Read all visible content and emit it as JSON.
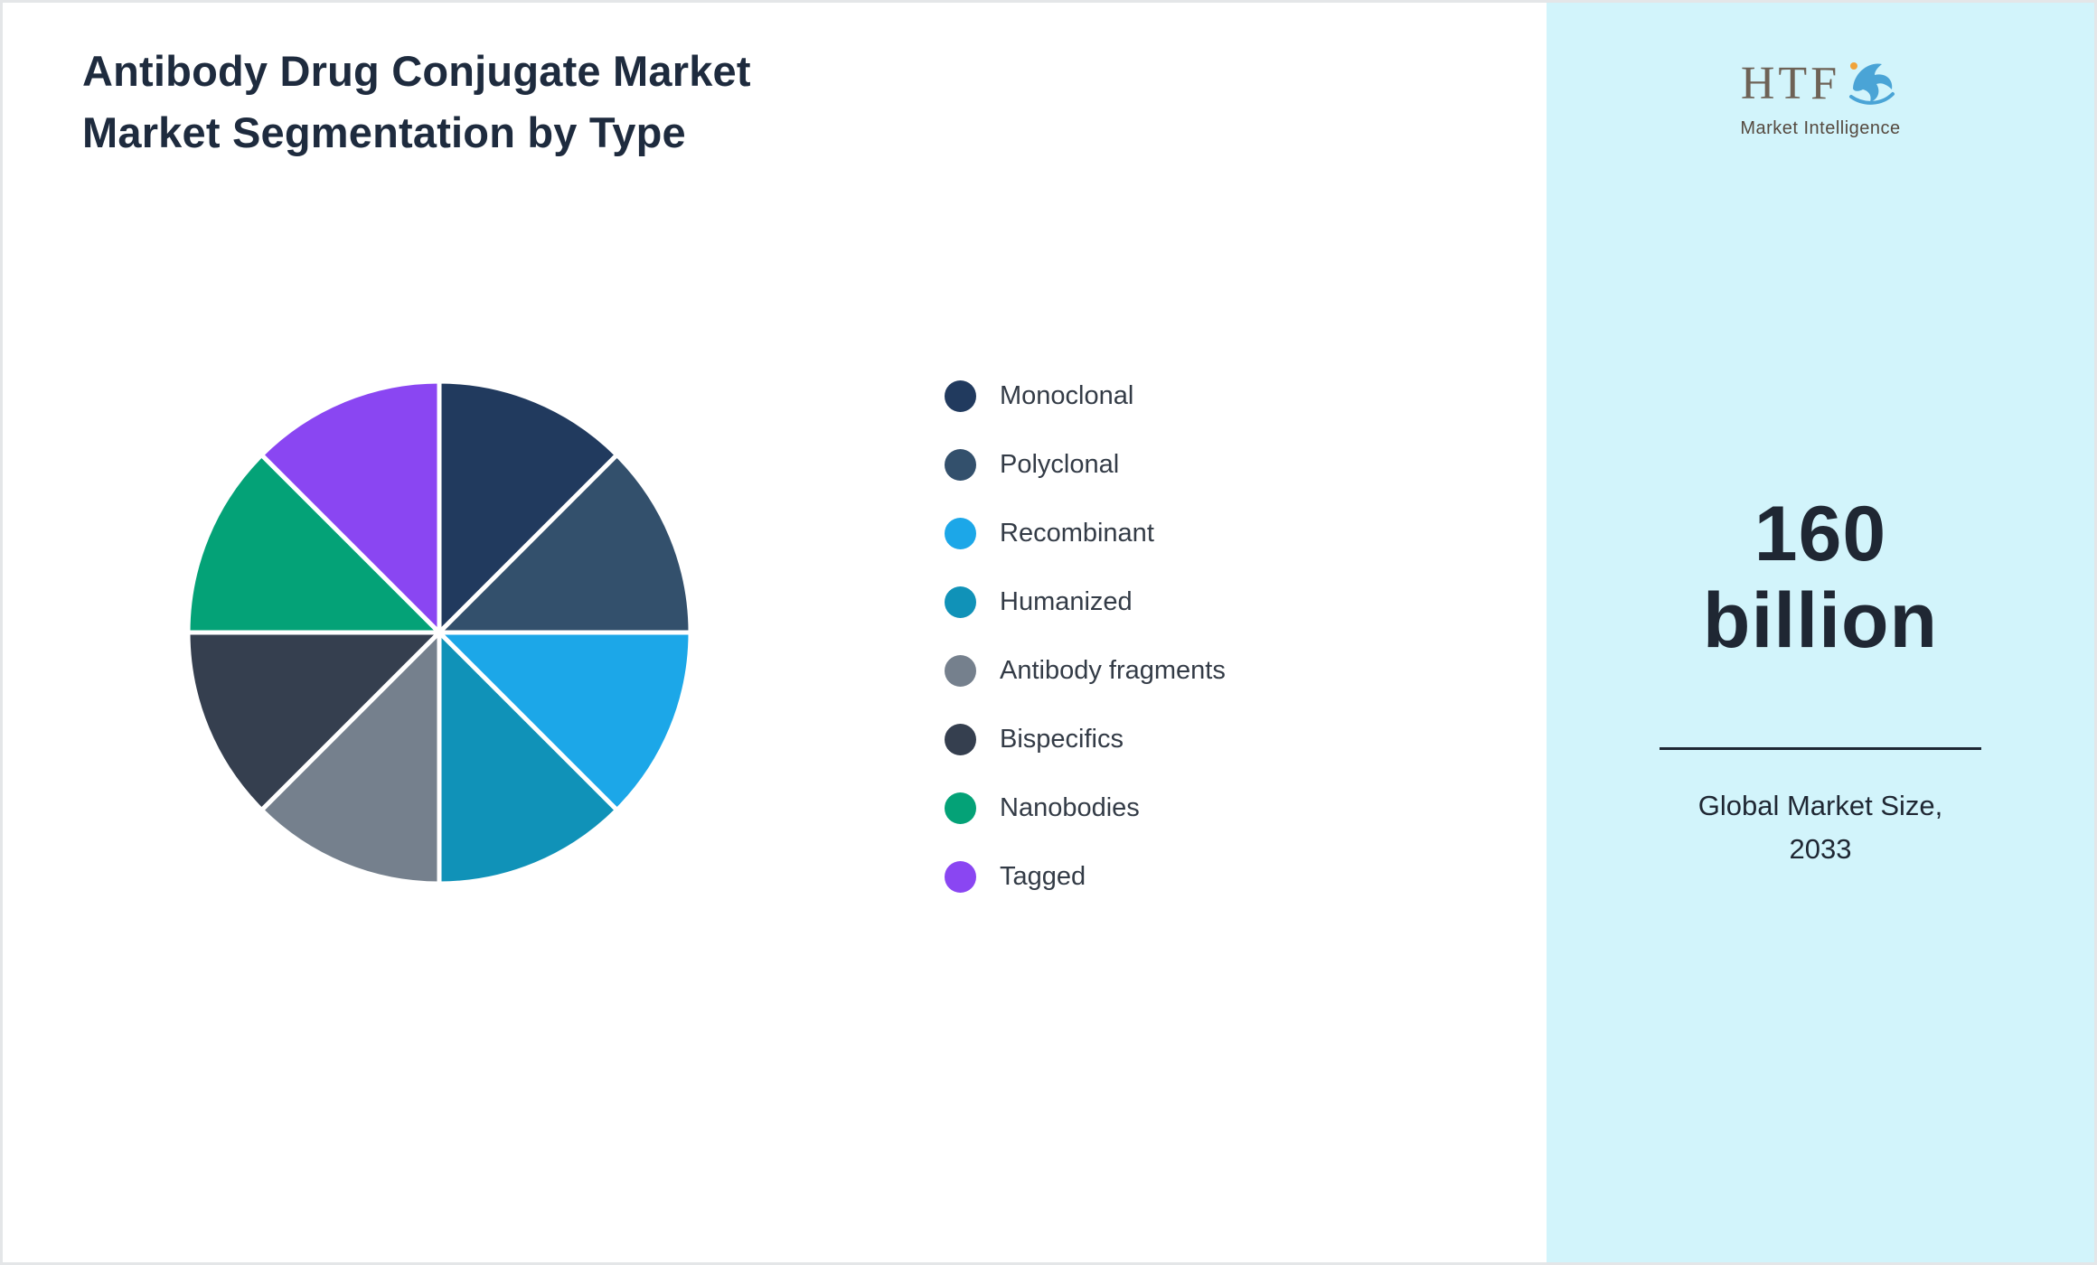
{
  "header": {
    "title_lines": [
      "Antibody Drug Conjugate Market",
      "Market Segmentation by Type"
    ]
  },
  "chart_data": {
    "type": "pie",
    "title": "Antibody Drug Conjugate Market - Market Segmentation by Type",
    "legend_position": "right",
    "data_labels_shown": false,
    "categories": [
      "Monoclonal",
      "Polyclonal",
      "Recombinant",
      "Humanized",
      "Antibody fragments",
      "Bispecifics",
      "Nanobodies",
      "Tagged"
    ],
    "values": [
      12.5,
      12.5,
      12.5,
      12.5,
      12.5,
      12.5,
      12.5,
      12.5
    ],
    "colors": [
      "#213a5e",
      "#33506c",
      "#1ca7e8",
      "#1092b8",
      "#75808d",
      "#353f4f",
      "#04a277",
      "#8a46f2"
    ],
    "slice_separator_color": "#ffffff",
    "start_angle_deg": 0,
    "direction": "clockwise"
  },
  "sidebar": {
    "background": "#d2f4fb",
    "logo": {
      "text": "HTF",
      "subtext": "Market Intelligence",
      "dolphin_color": "#4aa4d6",
      "accent_color": "#f0a33a"
    },
    "stat": {
      "value_lines": [
        "160",
        "billion"
      ],
      "caption_lines": [
        "Global Market Size,",
        "2033"
      ]
    }
  }
}
